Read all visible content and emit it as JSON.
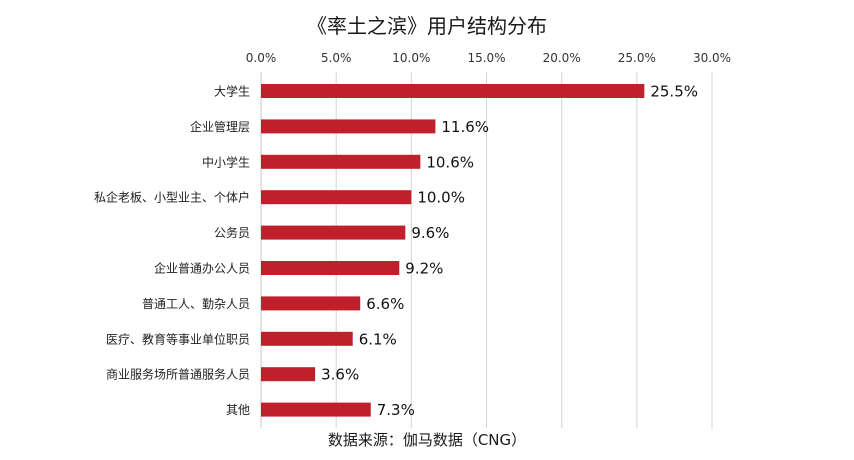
{
  "chart_data": {
    "type": "bar",
    "orientation": "horizontal",
    "title": "《率土之滨》用户结构分布",
    "source": "数据来源：伽马数据（CNG）",
    "categories": [
      "大学生",
      "企业管理层",
      "中小学生",
      "私企老板、小型业主、个体户",
      "公务员",
      "企业普通办公人员",
      "普通工人、勤杂人员",
      "医疗、教育等事业单位职员",
      "商业服务场所普通服务人员",
      "其他"
    ],
    "values": [
      25.5,
      11.6,
      10.6,
      10.0,
      9.6,
      9.2,
      6.6,
      6.1,
      3.6,
      7.3
    ],
    "value_labels": [
      "25.5%",
      "11.6%",
      "10.6%",
      "10.0%",
      "9.6%",
      "9.2%",
      "6.6%",
      "6.1%",
      "3.6%",
      "7.3%"
    ],
    "xlim": [
      0,
      30
    ],
    "x_ticks": [
      "0.0%",
      "5.0%",
      "10.0%",
      "15.0%",
      "20.0%",
      "25.0%",
      "30.0%"
    ],
    "x_axis_position": "top",
    "grid": true,
    "legend": "none",
    "bar_color": "#c0202c",
    "grid_color": "#d4d4d4"
  }
}
